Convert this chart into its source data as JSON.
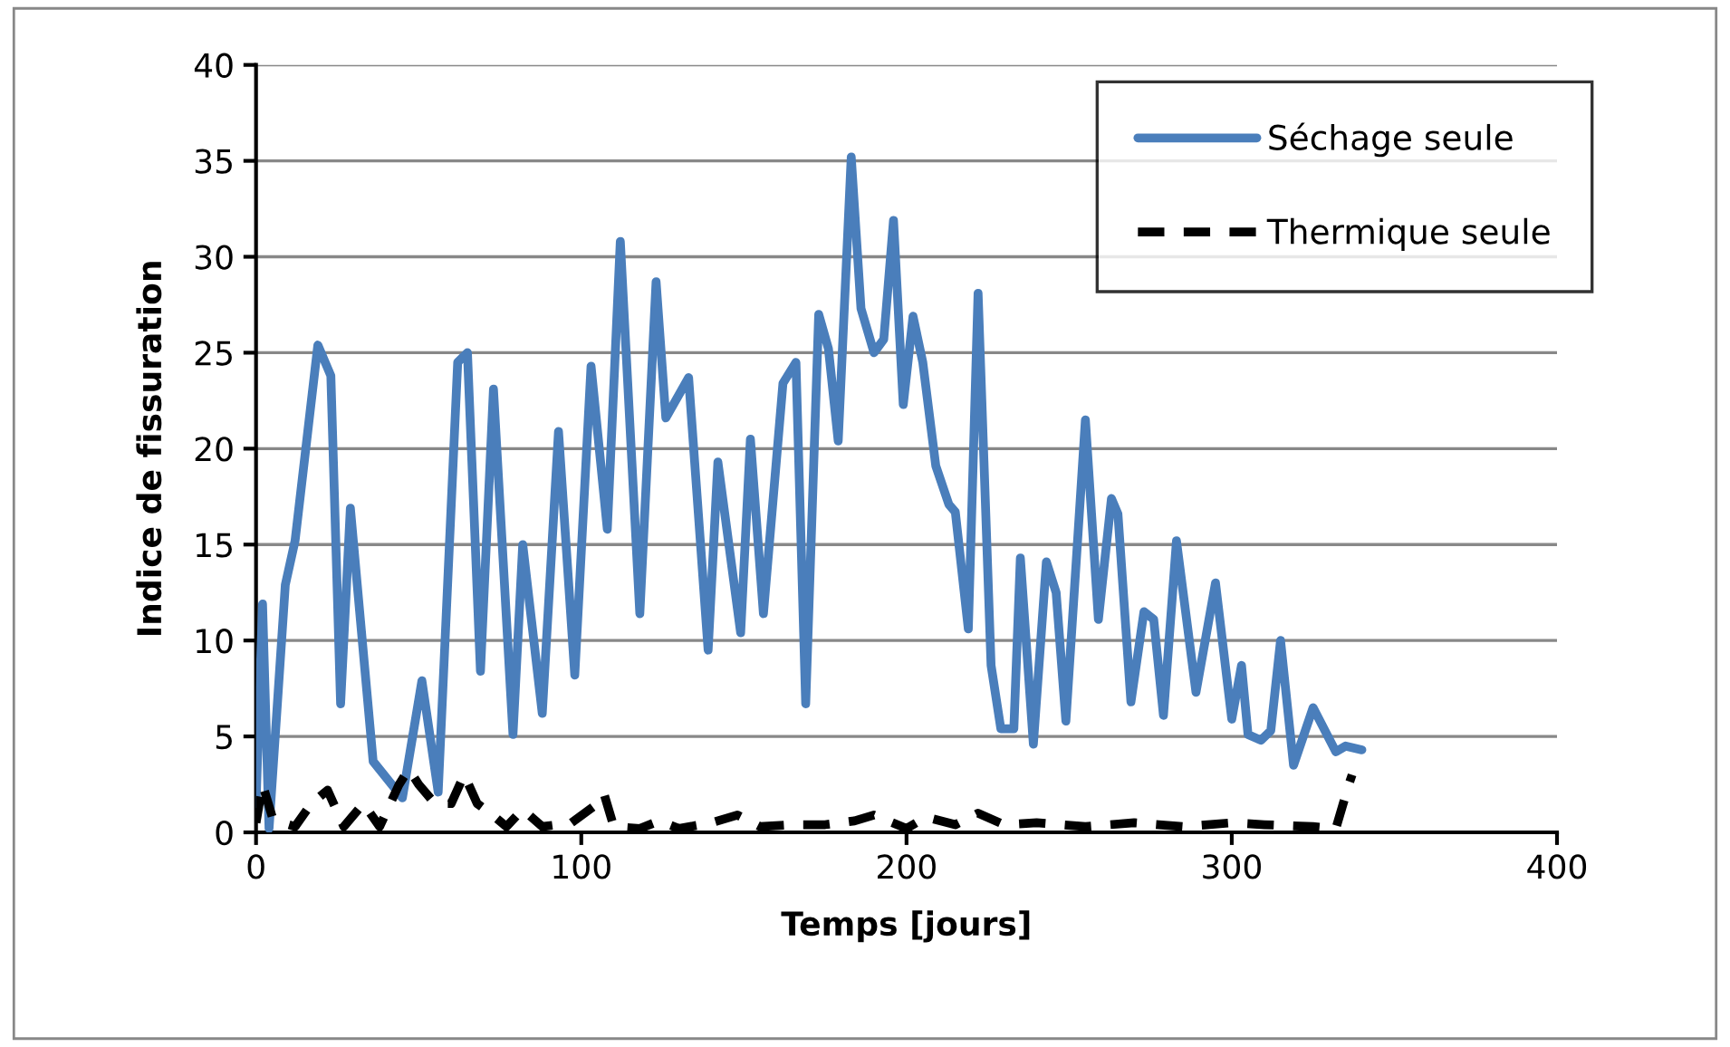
{
  "chart_data": {
    "type": "line",
    "xlabel": "Temps [jours]",
    "ylabel": "Indice de fissuration",
    "xlim": [
      0,
      400
    ],
    "xticks": [
      0,
      100,
      200,
      300,
      400
    ],
    "ylim": [
      0,
      40
    ],
    "yticks": [
      0,
      5,
      10,
      15,
      20,
      25,
      30,
      35,
      40
    ],
    "grid": "y",
    "legend": "top right",
    "marker": "none",
    "series": [
      {
        "name": "Séchage seule",
        "color": "#4a7ebb",
        "line_style": "solid",
        "x": [
          0,
          2,
          4,
          9,
          12,
          19,
          23,
          26,
          29,
          36,
          45,
          51,
          56,
          62,
          65,
          69,
          73,
          79,
          82,
          88,
          93,
          98,
          103,
          108,
          112,
          118,
          123,
          126,
          133,
          139,
          142,
          149,
          152,
          156,
          162,
          166,
          169,
          173,
          176,
          179,
          183,
          186,
          190,
          193,
          196,
          199,
          202,
          205,
          209,
          213,
          215,
          219,
          222,
          226,
          229,
          233,
          235,
          239,
          243,
          246,
          249,
          255,
          259,
          263,
          265,
          269,
          273,
          276,
          279,
          283,
          289,
          295,
          300,
          303,
          305,
          309,
          312,
          315,
          319,
          325,
          332,
          335,
          340
        ],
        "values": [
          1.5,
          11.9,
          0.2,
          12.9,
          15.2,
          25.4,
          23.8,
          6.7,
          16.9,
          3.7,
          1.8,
          7.9,
          2.1,
          24.5,
          25.0,
          8.4,
          23.1,
          5.1,
          15.0,
          6.2,
          20.9,
          8.2,
          24.3,
          15.8,
          30.8,
          11.4,
          28.7,
          21.6,
          23.7,
          9.5,
          19.3,
          10.4,
          20.5,
          11.4,
          23.4,
          24.5,
          6.7,
          27.0,
          25.2,
          20.4,
          35.2,
          27.3,
          25.0,
          25.7,
          31.9,
          22.3,
          26.9,
          24.5,
          19.1,
          17.1,
          16.7,
          10.6,
          28.1,
          8.7,
          5.4,
          5.4,
          14.3,
          4.6,
          14.1,
          12.5,
          5.8,
          21.5,
          11.1,
          17.4,
          16.6,
          6.8,
          11.5,
          11.1,
          6.1,
          15.2,
          7.3,
          13.0,
          5.9,
          8.7,
          5.1,
          4.8,
          5.3,
          10.0,
          3.5,
          6.5,
          4.2,
          4.5,
          4.3
        ]
      },
      {
        "name": "Thermique seule",
        "color": "#000000",
        "line_style": "dashed",
        "x": [
          0,
          2,
          5,
          8,
          12,
          17,
          22,
          27,
          33,
          38,
          44,
          47,
          50,
          55,
          60,
          64,
          68,
          72,
          77,
          82,
          88,
          97,
          105,
          107,
          110,
          118,
          124,
          130,
          140,
          148,
          155,
          165,
          175,
          184,
          190,
          200,
          206,
          215,
          222,
          230,
          240,
          255,
          270,
          285,
          300,
          310,
          325,
          332,
          336,
          337
        ],
        "values": [
          0.5,
          2.5,
          0.8,
          0.5,
          0.3,
          1.5,
          2.2,
          0.3,
          1.5,
          0.3,
          2.5,
          3.3,
          2.5,
          1.5,
          1.5,
          3.0,
          1.5,
          1.0,
          0.3,
          1.2,
          0.3,
          0.5,
          1.5,
          2.0,
          0.3,
          0.2,
          0.6,
          0.2,
          0.5,
          0.9,
          0.3,
          0.4,
          0.4,
          0.6,
          0.9,
          0.2,
          0.8,
          0.4,
          1.0,
          0.4,
          0.5,
          0.3,
          0.5,
          0.3,
          0.5,
          0.4,
          0.3,
          0.2,
          2.5,
          3.0
        ]
      }
    ]
  }
}
